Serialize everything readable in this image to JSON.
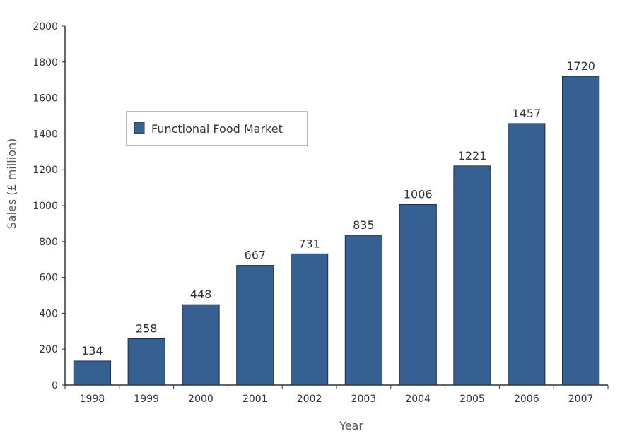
{
  "chart_data": {
    "type": "bar",
    "categories": [
      "1998",
      "1999",
      "2000",
      "2001",
      "2002",
      "2003",
      "2004",
      "2005",
      "2006",
      "2007"
    ],
    "series": [
      {
        "name": "Functional Food Market",
        "values": [
          134,
          258,
          448,
          667,
          731,
          835,
          1006,
          1221,
          1457,
          1720
        ]
      }
    ],
    "data_labels": [
      "134",
      "258",
      "448",
      "667",
      "731",
      "835",
      "1006",
      "1221",
      "1457",
      "1720"
    ],
    "xlabel": "Year",
    "ylabel": "Sales (£ million)",
    "ylim": [
      0,
      2000
    ],
    "yticks": [
      "0",
      "200",
      "400",
      "600",
      "800",
      "1000",
      "1200",
      "1400",
      "1600",
      "1800",
      "2000"
    ],
    "grid": false,
    "legend_position": "upper-left",
    "colors": {
      "bar": "#376092",
      "bar_edge": "#1f2f44",
      "axis": "#333333",
      "text": "#333333",
      "axis_title": "#555555"
    }
  }
}
